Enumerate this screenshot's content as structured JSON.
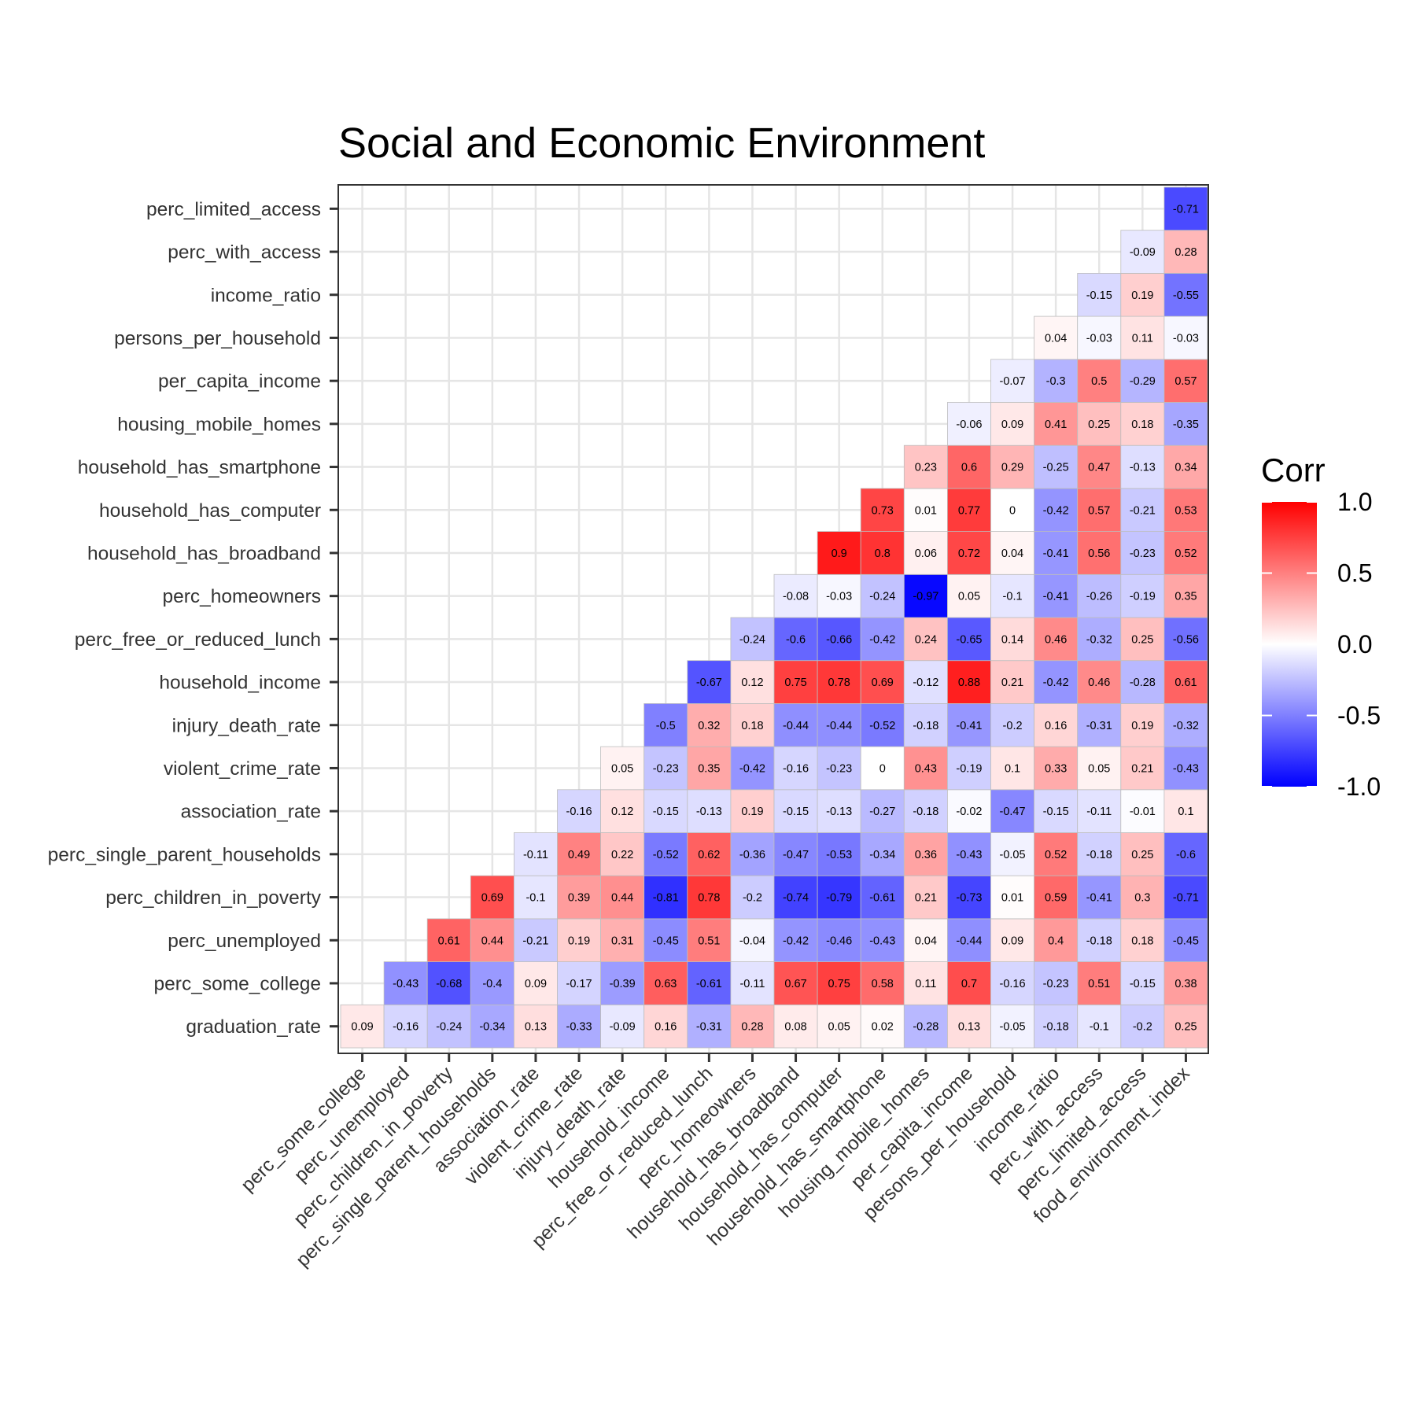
{
  "chart_data": {
    "type": "heatmap",
    "title": "Social and Economic Environment",
    "x_categories": [
      "perc_some_college",
      "perc_unemployed",
      "perc_children_in_poverty",
      "perc_single_parent_households",
      "association_rate",
      "violent_crime_rate",
      "injury_death_rate",
      "household_income",
      "perc_free_or_reduced_lunch",
      "perc_homeowners",
      "household_has_broadband",
      "household_has_computer",
      "household_has_smartphone",
      "housing_mobile_homes",
      "per_capita_income",
      "persons_per_household",
      "income_ratio",
      "perc_with_access",
      "perc_limited_access",
      "food_environment_index"
    ],
    "y_categories": [
      "graduation_rate",
      "perc_some_college",
      "perc_unemployed",
      "perc_children_in_poverty",
      "perc_single_parent_households",
      "association_rate",
      "violent_crime_rate",
      "injury_death_rate",
      "household_income",
      "perc_free_or_reduced_lunch",
      "perc_homeowners",
      "household_has_broadband",
      "household_has_computer",
      "household_has_smartphone",
      "housing_mobile_homes",
      "per_capita_income",
      "persons_per_household",
      "income_ratio",
      "perc_with_access",
      "perc_limited_access"
    ],
    "rows": [
      [
        0.09,
        -0.16,
        -0.24,
        -0.34,
        0.13,
        -0.33,
        -0.09,
        0.16,
        -0.31,
        0.28,
        0.08,
        0.05,
        0.02,
        -0.28,
        0.13,
        -0.05,
        -0.18,
        -0.1,
        -0.2,
        0.25
      ],
      [
        -0.43,
        -0.68,
        -0.4,
        0.09,
        -0.17,
        -0.39,
        0.63,
        -0.61,
        -0.11,
        0.67,
        0.75,
        0.58,
        0.11,
        0.7,
        -0.16,
        -0.23,
        0.51,
        -0.15,
        0.38
      ],
      [
        0.61,
        0.44,
        -0.21,
        0.19,
        0.31,
        -0.45,
        0.51,
        -0.04,
        -0.42,
        -0.46,
        -0.43,
        0.04,
        -0.44,
        0.09,
        0.4,
        -0.18,
        0.18,
        -0.45
      ],
      [
        0.69,
        -0.1,
        0.39,
        0.44,
        -0.81,
        0.78,
        -0.2,
        -0.74,
        -0.79,
        -0.61,
        0.21,
        -0.73,
        0.01,
        0.59,
        -0.41,
        0.3,
        -0.71
      ],
      [
        -0.11,
        0.49,
        0.22,
        -0.52,
        0.62,
        -0.36,
        -0.47,
        -0.53,
        -0.34,
        0.36,
        -0.43,
        -0.05,
        0.52,
        -0.18,
        0.25,
        -0.6
      ],
      [
        -0.16,
        0.12,
        -0.15,
        -0.13,
        0.19,
        -0.15,
        -0.13,
        -0.27,
        -0.18,
        -0.02,
        -0.47,
        -0.15,
        -0.11,
        -0.01,
        0.1
      ],
      [
        0.05,
        -0.23,
        0.35,
        -0.42,
        -0.16,
        -0.23,
        0,
        0.43,
        -0.19,
        0.1,
        0.33,
        0.05,
        0.21,
        -0.43
      ],
      [
        -0.5,
        0.32,
        0.18,
        -0.44,
        -0.44,
        -0.52,
        -0.18,
        -0.41,
        -0.2,
        0.16,
        -0.31,
        0.19,
        -0.32
      ],
      [
        -0.67,
        0.12,
        0.75,
        0.78,
        0.69,
        -0.12,
        0.88,
        0.21,
        -0.42,
        0.46,
        -0.28,
        0.61
      ],
      [
        -0.24,
        -0.6,
        -0.66,
        -0.42,
        0.24,
        -0.65,
        0.14,
        0.46,
        -0.32,
        0.25,
        -0.56
      ],
      [
        -0.08,
        -0.03,
        -0.24,
        -0.97,
        0.05,
        -0.1,
        -0.41,
        -0.26,
        -0.19,
        0.35
      ],
      [
        0.9,
        0.8,
        0.06,
        0.72,
        0.04,
        -0.41,
        0.56,
        -0.23,
        0.52
      ],
      [
        0.73,
        0.01,
        0.77,
        0,
        -0.42,
        0.57,
        -0.21,
        0.53
      ],
      [
        0.23,
        0.6,
        0.29,
        -0.25,
        0.47,
        -0.13,
        0.34
      ],
      [
        -0.06,
        0.09,
        0.41,
        0.25,
        0.18,
        -0.35
      ],
      [
        -0.07,
        -0.3,
        0.5,
        -0.29,
        0.57
      ],
      [
        0.04,
        -0.03,
        0.11,
        -0.03
      ],
      [
        -0.15,
        0.19,
        -0.55
      ],
      [
        -0.09,
        0.28
      ],
      [
        -0.71
      ]
    ],
    "value_range": [
      -1,
      1
    ],
    "grid": true,
    "legend": {
      "title": "Corr",
      "position": "right",
      "tick_labels": [
        "1.0",
        "0.5",
        "0.0",
        "-0.5",
        "-1.0"
      ],
      "tick_values": [
        1,
        0.5,
        0,
        -0.5,
        -1
      ],
      "low_color": "#0000ff",
      "mid_color": "#ffffff",
      "high_color": "#ff0000"
    }
  }
}
